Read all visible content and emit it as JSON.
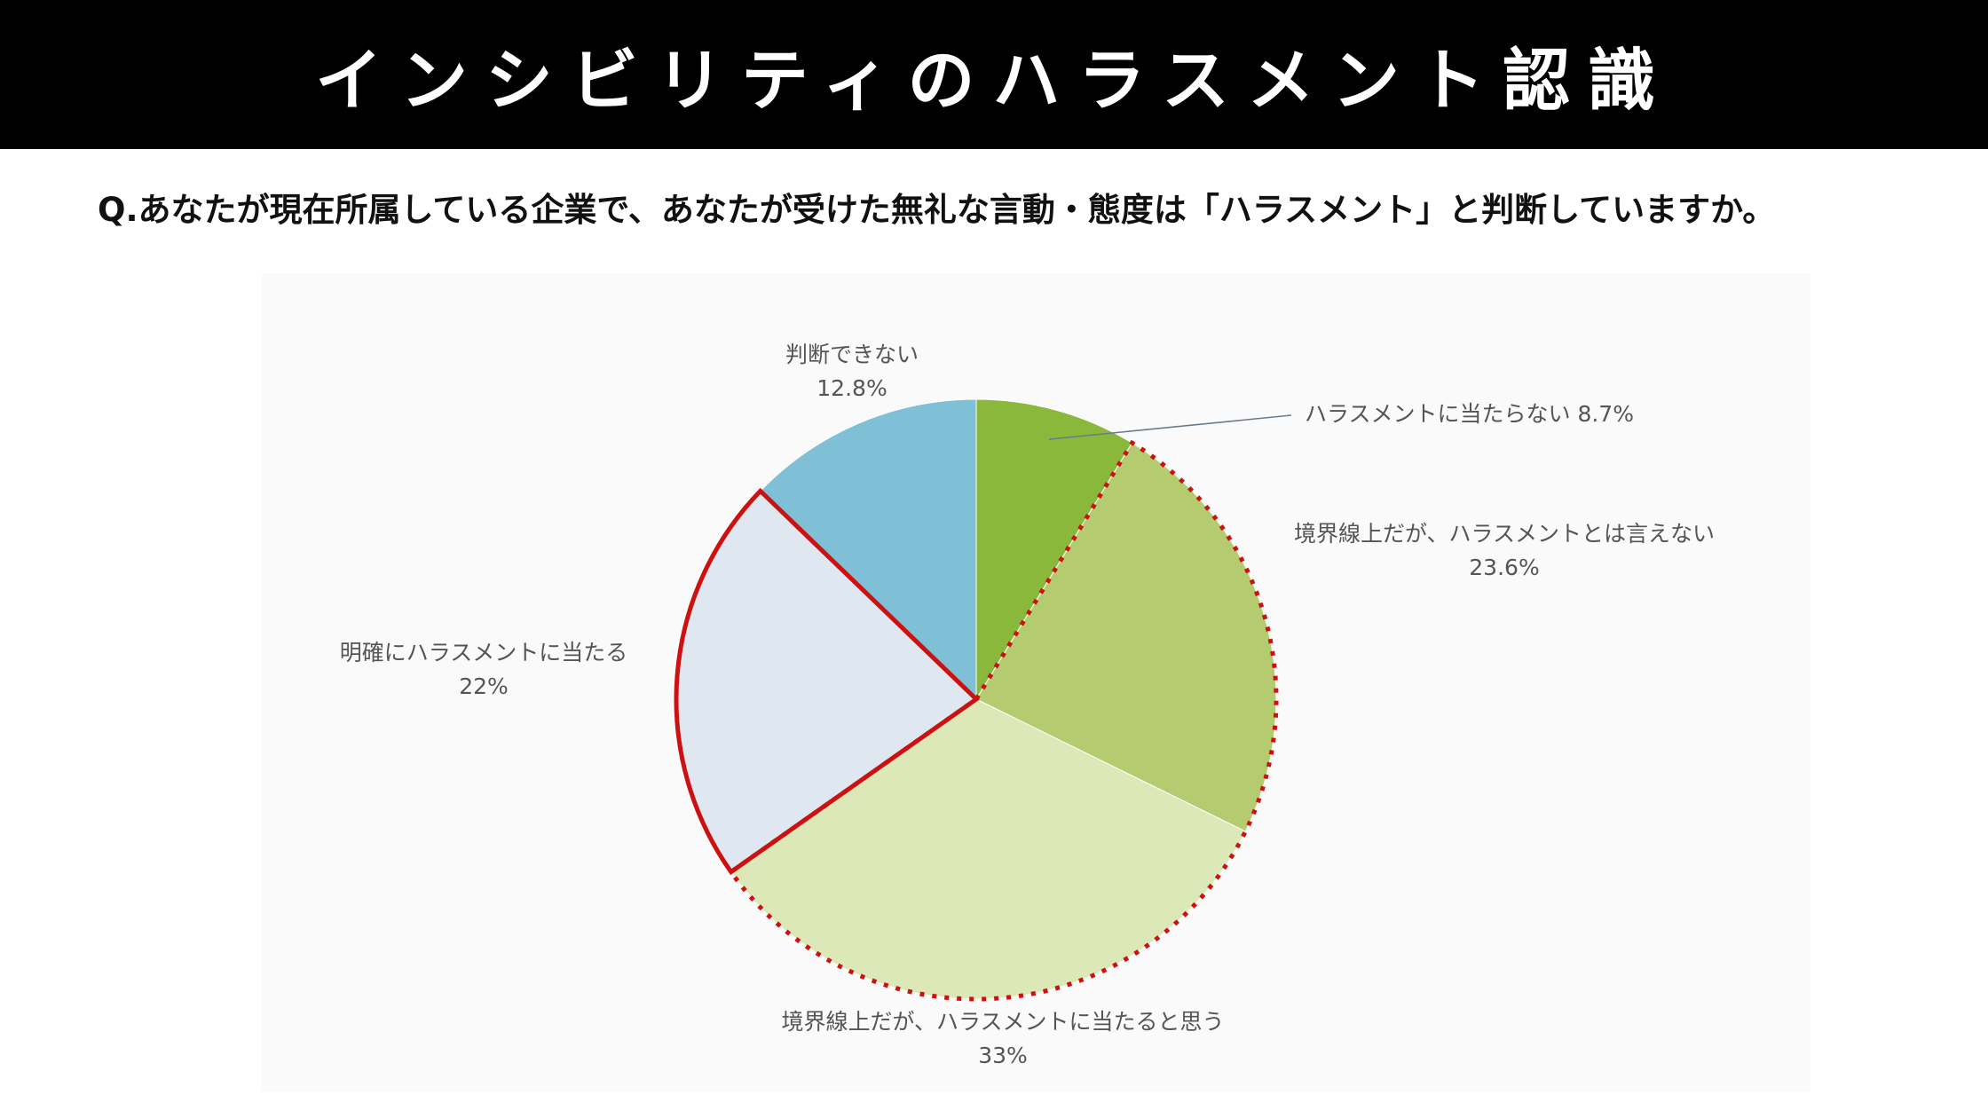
{
  "title": "インシビリティのハラスメント認識",
  "question": "Q.あなたが現在所属している企業で、あなたが受けた無礼な言動・態度は「ハラスメント」と判断していますか。",
  "chart_data": {
    "type": "pie",
    "start_angle_deg": 0,
    "direction": "clockwise",
    "slices": [
      {
        "label": "ハラスメントに当たらない",
        "value": 8.7,
        "display": "8.7%",
        "color": "#8ab83b"
      },
      {
        "label": "境界線上だが、ハラスメントとは言えない",
        "value": 23.6,
        "display": "23.6%",
        "color": "#b4cb70"
      },
      {
        "label": "境界線上だが、ハラスメントに当たると思う",
        "value": 33,
        "display": "33%",
        "color": "#dde8b8"
      },
      {
        "label": "明確にハラスメントに当たる",
        "value": 22,
        "display": "22%",
        "color": "#dfe8f1"
      },
      {
        "label": "判断できない",
        "value": 12.8,
        "display": "12.8%",
        "color": "#7fc0d6"
      }
    ],
    "highlights": [
      {
        "slices": [
          1,
          2
        ],
        "style": "dotted",
        "color": "#cc1111"
      },
      {
        "slices": [
          3
        ],
        "style": "solid",
        "color": "#cc1111"
      }
    ]
  }
}
